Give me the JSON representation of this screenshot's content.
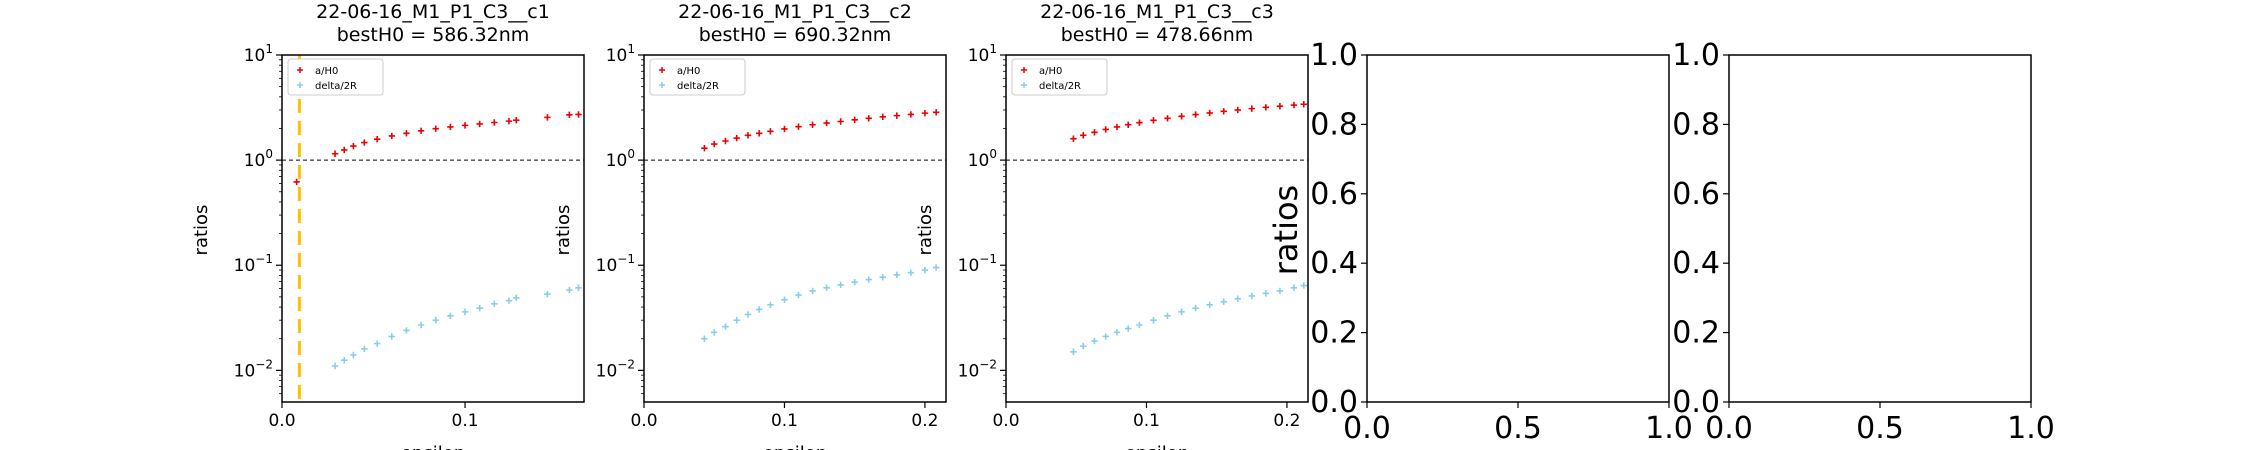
{
  "chart_data": [
    {
      "type": "scatter",
      "title": "22-06-16_M1_P1_C3__c1\nbestH0 = 586.32nm",
      "xlabel": "epsilon",
      "ylabel": "ratios",
      "yscale": "log",
      "xlim": [
        0.0,
        0.165
      ],
      "ylim": [
        0.005,
        10
      ],
      "xticks": [
        0.0,
        0.1
      ],
      "xtick_labels": [
        "0.0",
        "0.1"
      ],
      "yticks": [
        0.01,
        0.1,
        1,
        10
      ],
      "ytick_labels": [
        {
          "base": "10",
          "exp": "−2"
        },
        {
          "base": "10",
          "exp": "−1"
        },
        {
          "base": "10",
          "exp": "0"
        },
        {
          "base": "10",
          "exp": "1"
        }
      ],
      "hline": {
        "y": 1,
        "style": "dashed",
        "color": "#000000"
      },
      "vline": {
        "x": 0.0095,
        "style": "dashed",
        "color": "#ffc000"
      },
      "legend": {
        "location": "top-left",
        "entries": [
          "a/H0",
          "delta/2R"
        ]
      },
      "series": [
        {
          "name": "a/H0",
          "color": "#ee0000",
          "marker": "plus",
          "x": [
            0.008,
            0.029,
            0.034,
            0.039,
            0.045,
            0.052,
            0.06,
            0.068,
            0.076,
            0.084,
            0.092,
            0.1,
            0.108,
            0.116,
            0.124,
            0.128,
            0.145,
            0.157,
            0.162
          ],
          "y": [
            0.62,
            1.15,
            1.25,
            1.36,
            1.47,
            1.58,
            1.7,
            1.8,
            1.9,
            1.99,
            2.07,
            2.14,
            2.21,
            2.28,
            2.35,
            2.4,
            2.55,
            2.7,
            2.72
          ]
        },
        {
          "name": "delta/2R",
          "color": "#87ceeb",
          "marker": "plus",
          "x": [
            0.029,
            0.034,
            0.039,
            0.045,
            0.052,
            0.06,
            0.068,
            0.076,
            0.084,
            0.092,
            0.1,
            0.108,
            0.116,
            0.124,
            0.128,
            0.145,
            0.157,
            0.162
          ],
          "y": [
            0.011,
            0.0125,
            0.014,
            0.016,
            0.018,
            0.021,
            0.024,
            0.027,
            0.03,
            0.033,
            0.036,
            0.039,
            0.043,
            0.046,
            0.049,
            0.053,
            0.058,
            0.061
          ]
        }
      ]
    },
    {
      "type": "scatter",
      "title": "22-06-16_M1_P1_C3__c2\nbestH0 = 690.32nm",
      "xlabel": "epsilon",
      "ylabel": "ratios",
      "yscale": "log",
      "xlim": [
        0.0,
        0.215
      ],
      "ylim": [
        0.005,
        10
      ],
      "xticks": [
        0.0,
        0.1,
        0.2
      ],
      "xtick_labels": [
        "0.0",
        "0.1",
        "0.2"
      ],
      "yticks": [
        0.01,
        0.1,
        1,
        10
      ],
      "ytick_labels": [
        {
          "base": "10",
          "exp": "−2"
        },
        {
          "base": "10",
          "exp": "−1"
        },
        {
          "base": "10",
          "exp": "0"
        },
        {
          "base": "10",
          "exp": "1"
        }
      ],
      "hline": {
        "y": 1,
        "style": "dashed",
        "color": "#000000"
      },
      "legend": {
        "location": "top-left",
        "entries": [
          "a/H0",
          "delta/2R"
        ]
      },
      "series": [
        {
          "name": "a/H0",
          "color": "#ee0000",
          "marker": "plus",
          "x": [
            0.043,
            0.05,
            0.058,
            0.066,
            0.074,
            0.082,
            0.09,
            0.1,
            0.11,
            0.12,
            0.13,
            0.14,
            0.15,
            0.16,
            0.17,
            0.18,
            0.19,
            0.2,
            0.208
          ],
          "y": [
            1.3,
            1.42,
            1.52,
            1.62,
            1.72,
            1.8,
            1.88,
            1.98,
            2.08,
            2.17,
            2.25,
            2.33,
            2.42,
            2.5,
            2.58,
            2.65,
            2.72,
            2.8,
            2.85
          ]
        },
        {
          "name": "delta/2R",
          "color": "#87ceeb",
          "marker": "plus",
          "x": [
            0.043,
            0.05,
            0.058,
            0.066,
            0.074,
            0.082,
            0.09,
            0.1,
            0.11,
            0.12,
            0.13,
            0.14,
            0.15,
            0.16,
            0.17,
            0.18,
            0.19,
            0.2,
            0.208
          ],
          "y": [
            0.02,
            0.023,
            0.026,
            0.03,
            0.034,
            0.038,
            0.042,
            0.047,
            0.052,
            0.057,
            0.061,
            0.065,
            0.069,
            0.073,
            0.077,
            0.081,
            0.085,
            0.09,
            0.095
          ]
        }
      ]
    },
    {
      "type": "scatter",
      "title": "22-06-16_M1_P1_C3__c3\nbestH0 = 478.66nm",
      "xlabel": "epsilon",
      "ylabel": "ratios",
      "yscale": "log",
      "xlim": [
        0.0,
        0.215
      ],
      "ylim": [
        0.005,
        10
      ],
      "xticks": [
        0.0,
        0.1,
        0.2
      ],
      "xtick_labels": [
        "0.0",
        "0.1",
        "0.2"
      ],
      "yticks": [
        0.01,
        0.1,
        1,
        10
      ],
      "ytick_labels": [
        {
          "base": "10",
          "exp": "−2"
        },
        {
          "base": "10",
          "exp": "−1"
        },
        {
          "base": "10",
          "exp": "0"
        },
        {
          "base": "10",
          "exp": "1"
        }
      ],
      "hline": {
        "y": 1,
        "style": "dashed",
        "color": "#000000"
      },
      "legend": {
        "location": "top-left",
        "entries": [
          "a/H0",
          "delta/2R"
        ]
      },
      "series": [
        {
          "name": "a/H0",
          "color": "#ee0000",
          "marker": "plus",
          "x": [
            0.048,
            0.055,
            0.063,
            0.071,
            0.079,
            0.087,
            0.095,
            0.105,
            0.115,
            0.125,
            0.135,
            0.145,
            0.155,
            0.165,
            0.175,
            0.185,
            0.195,
            0.205,
            0.212
          ],
          "y": [
            1.6,
            1.72,
            1.84,
            1.96,
            2.07,
            2.17,
            2.27,
            2.39,
            2.5,
            2.61,
            2.71,
            2.81,
            2.91,
            3.0,
            3.09,
            3.18,
            3.26,
            3.34,
            3.4
          ]
        },
        {
          "name": "delta/2R",
          "color": "#87ceeb",
          "marker": "plus",
          "x": [
            0.048,
            0.055,
            0.063,
            0.071,
            0.079,
            0.087,
            0.095,
            0.105,
            0.115,
            0.125,
            0.135,
            0.145,
            0.155,
            0.165,
            0.175,
            0.185,
            0.195,
            0.205,
            0.212
          ],
          "y": [
            0.015,
            0.017,
            0.019,
            0.021,
            0.023,
            0.025,
            0.027,
            0.03,
            0.033,
            0.036,
            0.039,
            0.042,
            0.045,
            0.048,
            0.051,
            0.054,
            0.057,
            0.061,
            0.064
          ]
        }
      ]
    },
    {
      "type": "scatter",
      "title": "",
      "xlabel": "",
      "ylabel": "ratios",
      "xlim": [
        0.0,
        1.0
      ],
      "ylim": [
        0.0,
        1.0
      ],
      "xticks": [
        0.0,
        0.5,
        1.0
      ],
      "xtick_labels": [
        "0.0",
        "0.5",
        "1.0"
      ],
      "yticks": [
        0.0,
        0.2,
        0.4,
        0.6,
        0.8,
        1.0
      ],
      "ytick_labels": [
        "0.0",
        "0.2",
        "0.4",
        "0.6",
        "0.8",
        "1.0"
      ],
      "series": []
    },
    {
      "type": "scatter",
      "title": "",
      "xlabel": "",
      "ylabel": "",
      "xlim": [
        0.0,
        1.0
      ],
      "ylim": [
        0.0,
        1.0
      ],
      "xticks": [
        0.0,
        0.5,
        1.0
      ],
      "xtick_labels": [
        "0.0",
        "0.5",
        "1.0"
      ],
      "yticks": [
        0.0,
        0.2,
        0.4,
        0.6,
        0.8,
        1.0
      ],
      "ytick_labels": [
        "0.0",
        "0.2",
        "0.4",
        "0.6",
        "0.8",
        "1.0"
      ],
      "series": []
    }
  ]
}
